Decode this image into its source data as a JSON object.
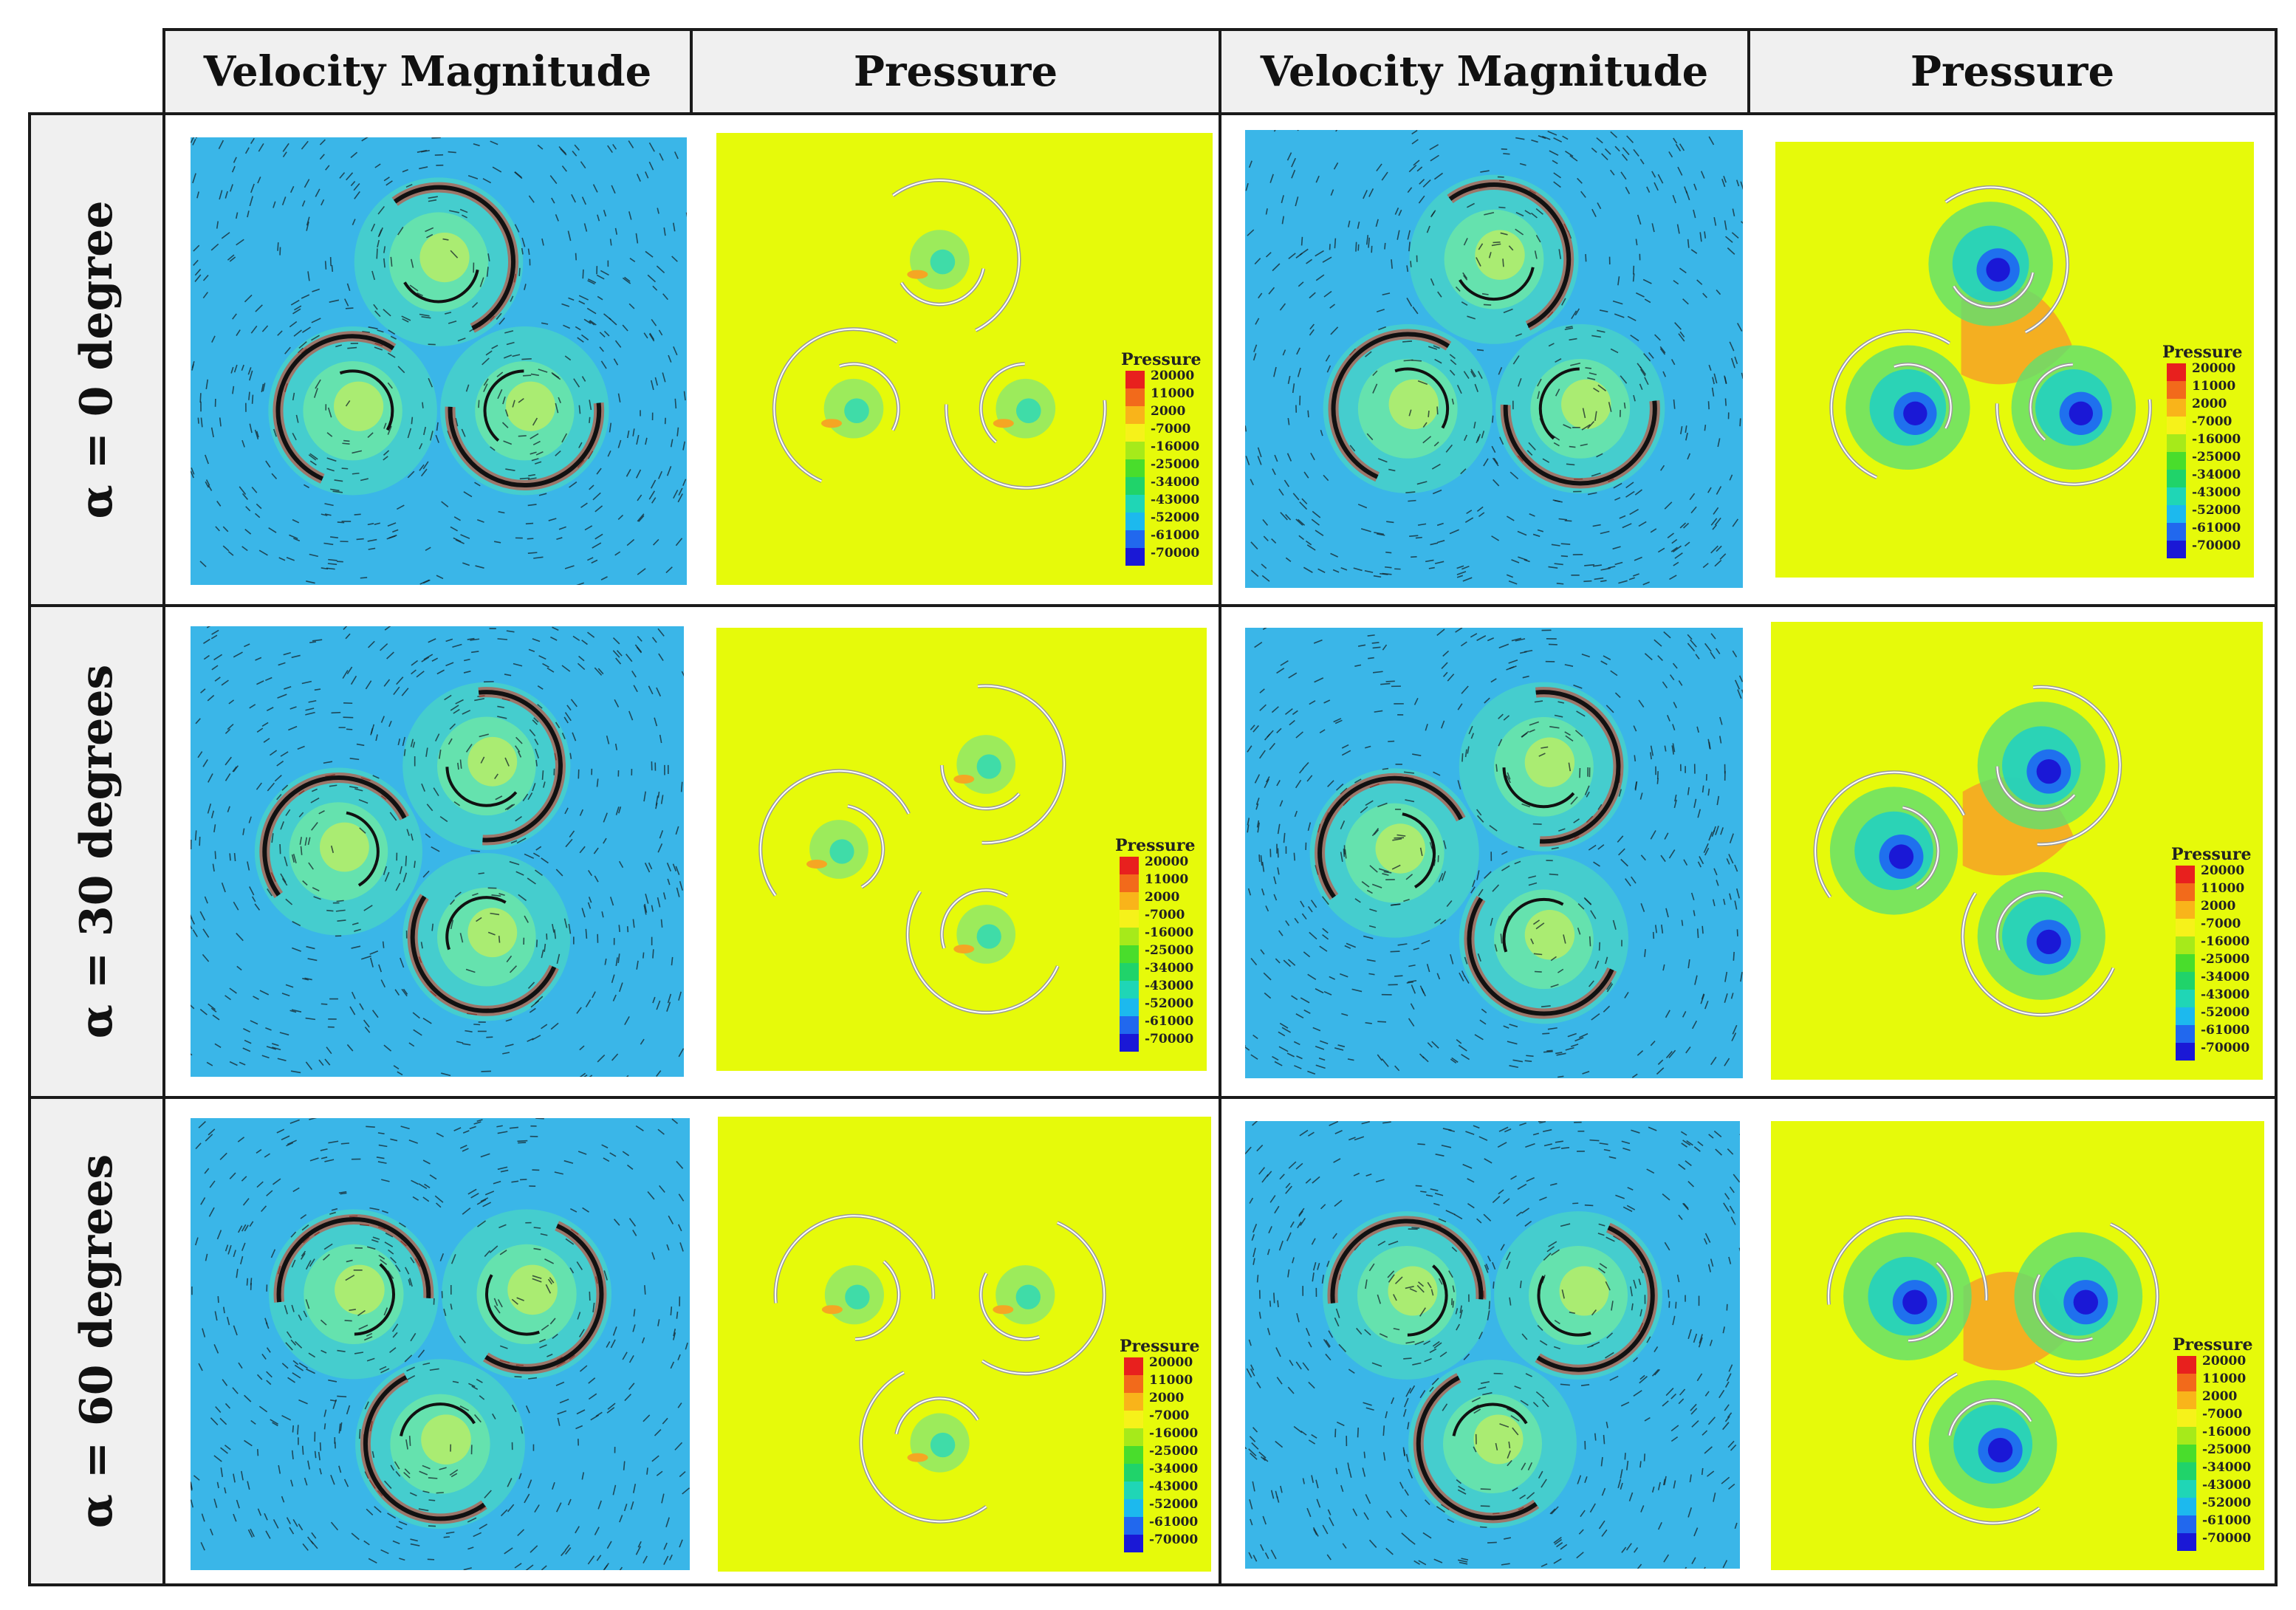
{
  "headers": [
    "Velocity Magnitude",
    "Pressure",
    "Velocity Magnitude",
    "Pressure"
  ],
  "rows": [
    {
      "label": "α = 0 degree"
    },
    {
      "label": "α = 30 degrees"
    },
    {
      "label": "α = 60 degrees"
    }
  ],
  "legend": {
    "title": "Pressure",
    "values": [
      "20000",
      "11000",
      "2000",
      "-7000",
      "-16000",
      "-25000",
      "-34000",
      "-43000",
      "-52000",
      "-61000",
      "-70000"
    ],
    "colors": [
      "#e8201e",
      "#f26a1b",
      "#f9b41a",
      "#f6f21a",
      "#a6ea1a",
      "#49dd2c",
      "#20d36a",
      "#1fd6b6",
      "#1cb9ee",
      "#2168ee",
      "#1a18d6"
    ]
  },
  "colors": {
    "velocity_bg": "#3ab6e8",
    "pressure_bg": "#e6fa0a",
    "blade": "#111111",
    "header_bg": "#f0f0f0"
  }
}
